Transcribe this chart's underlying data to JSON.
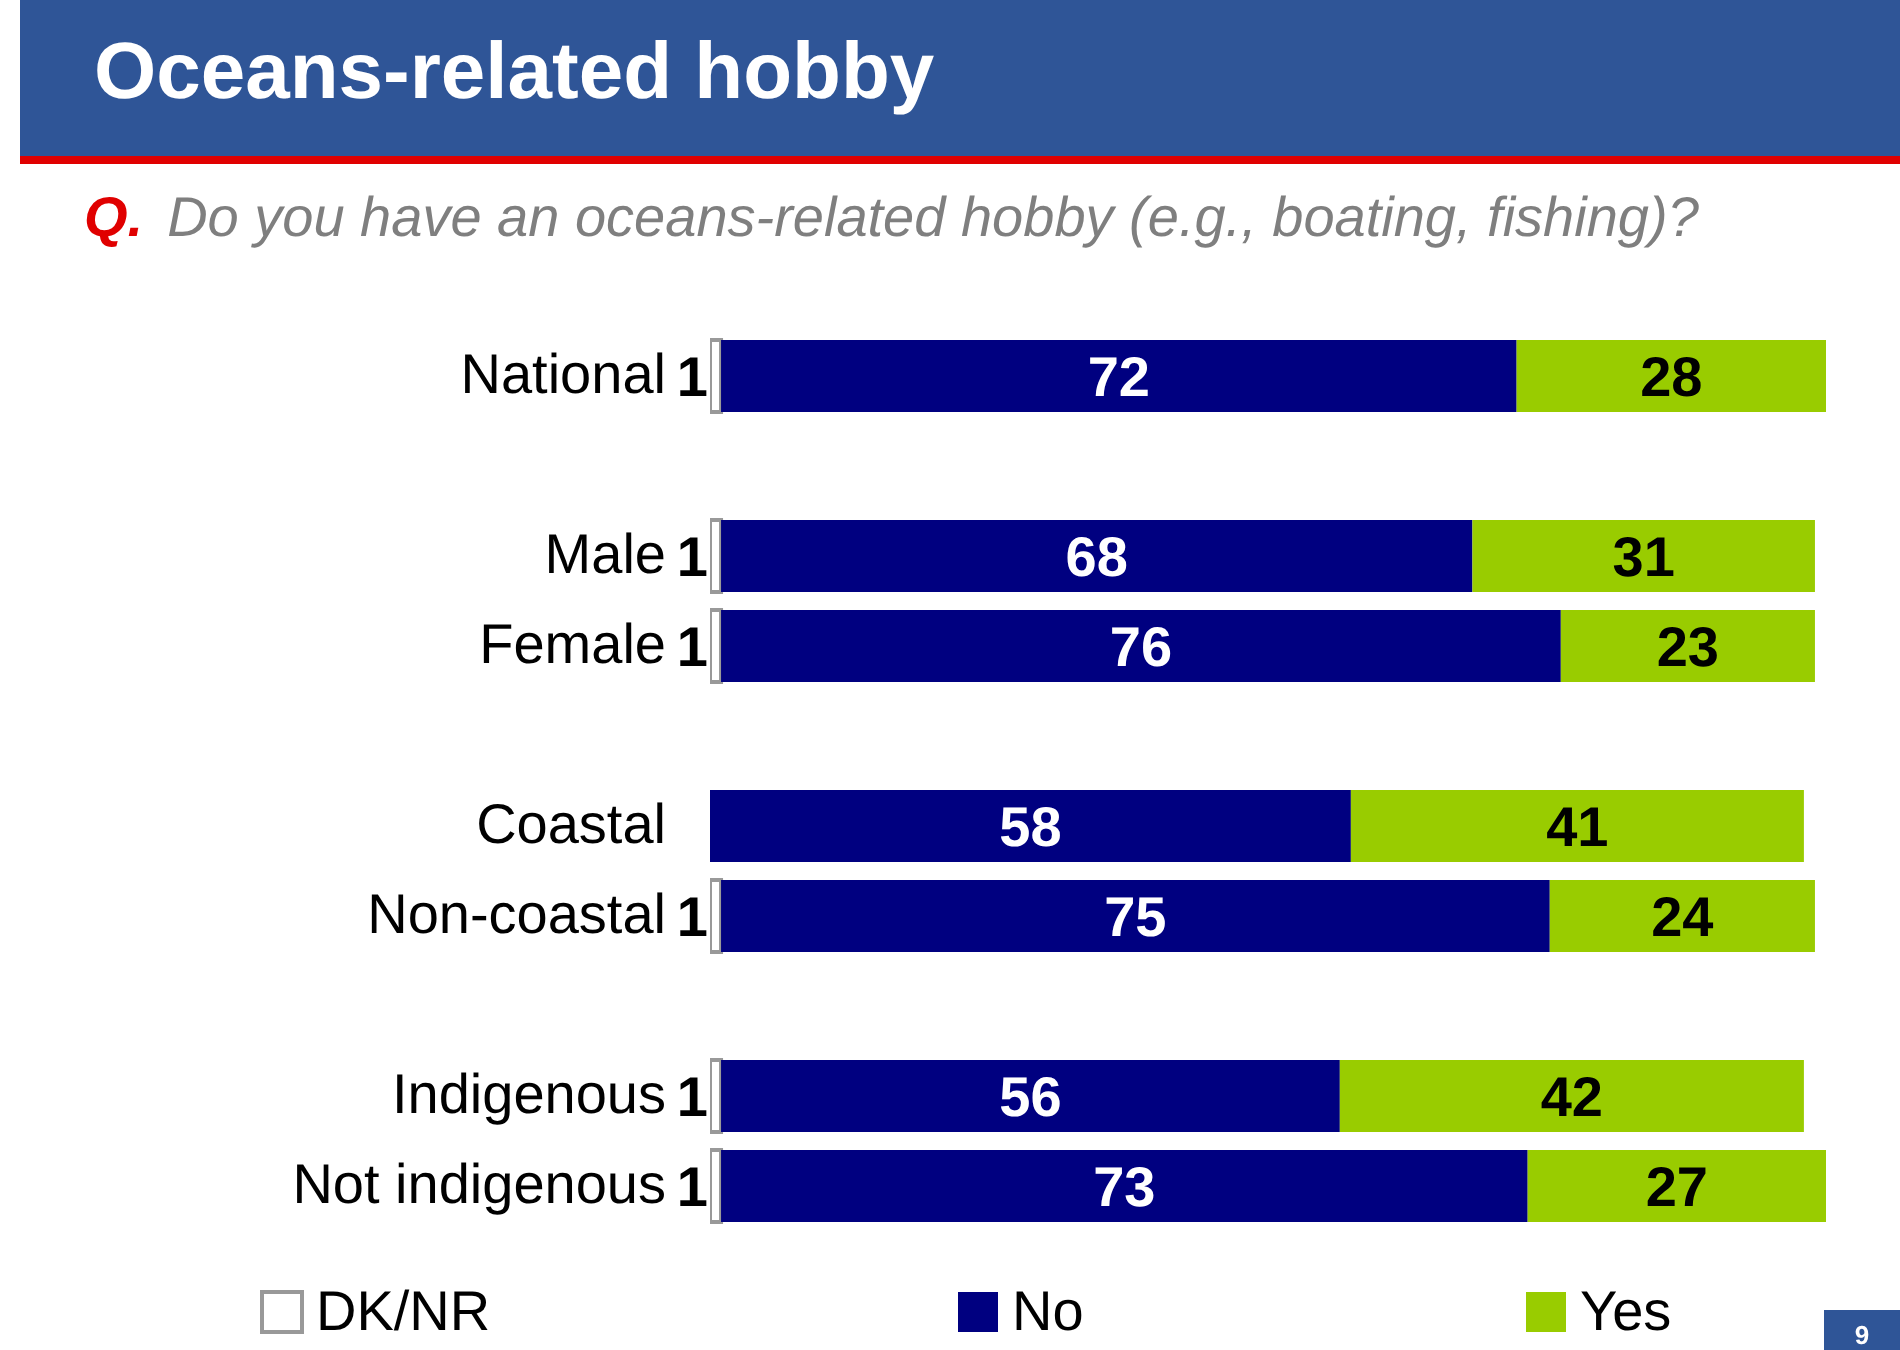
{
  "chart_data": {
    "type": "bar",
    "orientation": "horizontal",
    "stacked": true,
    "title": "Oceans-related hobby",
    "subtitle": "Q. Do you have an oceans-related hobby (e.g., boating, fishing)?",
    "categories": [
      "National",
      null,
      "Male",
      "Female",
      null,
      "Coastal",
      "Non-coastal",
      null,
      "Indigenous",
      "Not indigenous"
    ],
    "xlim": [
      0,
      101
    ],
    "tick_labels": "y",
    "grid": false,
    "legend": "bottom",
    "data_labels": true,
    "series": [
      {
        "name": "DK/NR",
        "color": "#ffffff",
        "values": [
          1,
          null,
          1,
          1,
          null,
          null,
          1,
          null,
          1,
          1
        ]
      },
      {
        "name": "No",
        "color": "#000080",
        "values": [
          72,
          null,
          68,
          76,
          null,
          58,
          75,
          null,
          56,
          73
        ]
      },
      {
        "name": "Yes",
        "color": "#99cc00",
        "values": [
          28,
          null,
          31,
          23,
          null,
          41,
          24,
          null,
          42,
          27
        ]
      }
    ],
    "annotations": [
      "9"
    ]
  }
}
